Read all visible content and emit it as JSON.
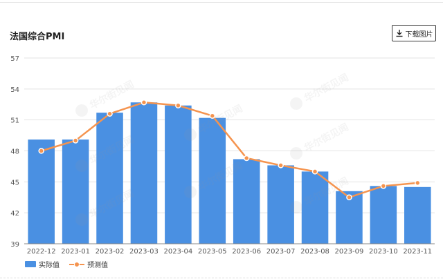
{
  "toolbar": {
    "download_label": "下载图片",
    "download_icon": "download-icon"
  },
  "colors": {
    "bar": "#4a90e2",
    "line": "#f5944f",
    "grid": "#e3e3e3",
    "axis_text": "#555555"
  },
  "watermark": "华尔街见闻",
  "chart_data": {
    "type": "bar",
    "title": "法国综合PMI",
    "categories": [
      "2022-12",
      "2023-01",
      "2023-02",
      "2023-03",
      "2023-04",
      "2023-05",
      "2023-06",
      "2023-07",
      "2023-08",
      "2023-09",
      "2023-10",
      "2023-11"
    ],
    "series": [
      {
        "name": "实际值",
        "type": "bar",
        "values": [
          49.1,
          49.1,
          51.7,
          52.7,
          52.4,
          51.2,
          47.2,
          46.6,
          46.0,
          44.1,
          44.6,
          44.5
        ]
      },
      {
        "name": "预测值",
        "type": "line",
        "values": [
          48.0,
          49.0,
          51.6,
          52.7,
          52.4,
          51.4,
          47.3,
          46.6,
          46.0,
          43.5,
          44.6,
          44.9
        ]
      }
    ],
    "yticks": [
      39,
      42,
      45,
      48,
      51,
      54,
      57
    ],
    "ylim": [
      39,
      57
    ],
    "grid": true,
    "legend": "bottom-left",
    "xlabel": "",
    "ylabel": ""
  }
}
